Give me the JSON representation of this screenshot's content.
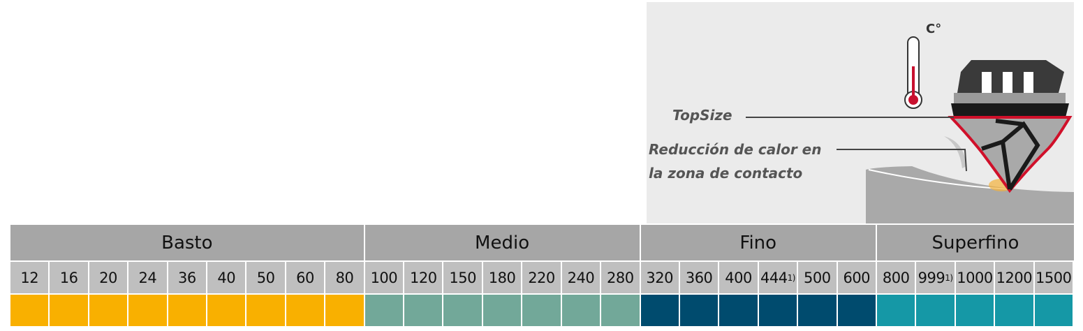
{
  "illustration": {
    "unit": "C°",
    "labels": [
      "TopSize",
      "Reducción de calor en",
      "la zona de contacto"
    ]
  },
  "table": {
    "groups": [
      {
        "name": "Basto",
        "color": "#f9b000",
        "grits": [
          "12",
          "16",
          "20",
          "24",
          "36",
          "40",
          "50",
          "60",
          "80"
        ]
      },
      {
        "name": "Medio",
        "color": "#72a899",
        "grits": [
          "100",
          "120",
          "150",
          "180",
          "220",
          "240",
          "280"
        ]
      },
      {
        "name": "Fino",
        "color": "#004b6e",
        "grits": [
          "320",
          "360",
          "400",
          {
            "text": "444",
            "note": "1)"
          },
          "500",
          "600"
        ]
      },
      {
        "name": "Superfino",
        "color": "#1598a6",
        "grits": [
          "800",
          {
            "text": "999",
            "note": "1)"
          },
          "1000",
          "1200",
          "1500"
        ]
      }
    ]
  }
}
